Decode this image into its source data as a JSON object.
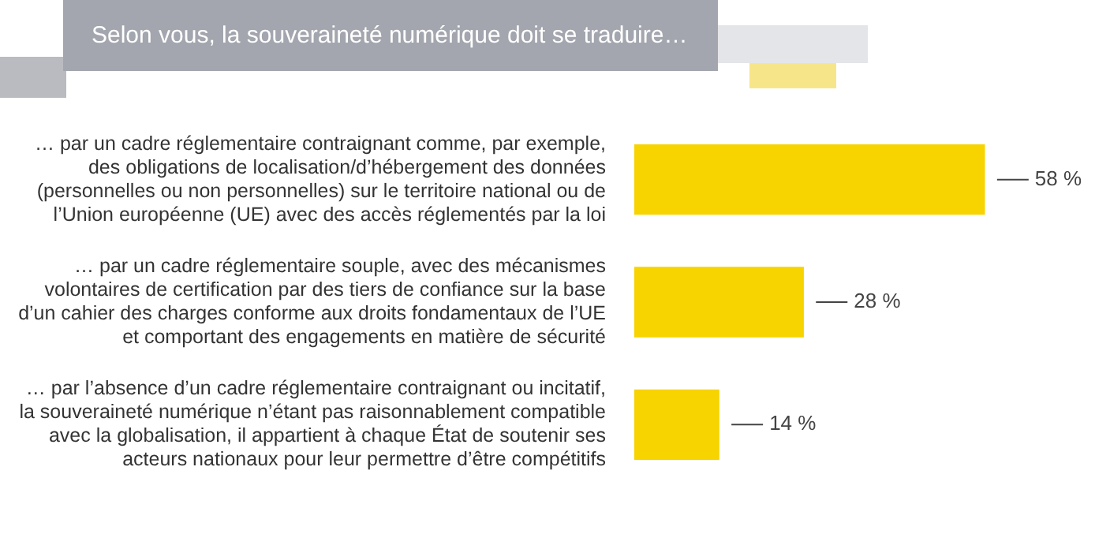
{
  "chart_data": {
    "type": "bar",
    "orientation": "horizontal",
    "title": "Selon vous, la souveraineté numérique doit se traduire…",
    "categories": [
      "… par un cadre réglementaire contraignant comme, par exemple, des obligations de localisation/d’hébergement des données (personnelles ou non personnelles) sur le territoire national ou de l’Union européenne (UE) avec des accès réglementés par la loi",
      "… par un cadre réglementaire souple, avec des mécanismes volontaires de certification par des tiers de confiance sur la base d’un cahier des charges conforme aux droits fondamentaux de l’UE et comportant des engagements en matière de sécurité",
      "… par l’absence d’un cadre réglementaire contraignant ou incitatif, la souveraineté numérique n’étant pas raisonnablement compatible avec la globalisation, il appartient à chaque État de soutenir ses acteurs nationaux pour leur permettre d’être compétitifs"
    ],
    "values": [
      58,
      28,
      14
    ],
    "value_labels": [
      "58 %",
      "28 %",
      "14 %"
    ],
    "color": "#f7d300"
  }
}
